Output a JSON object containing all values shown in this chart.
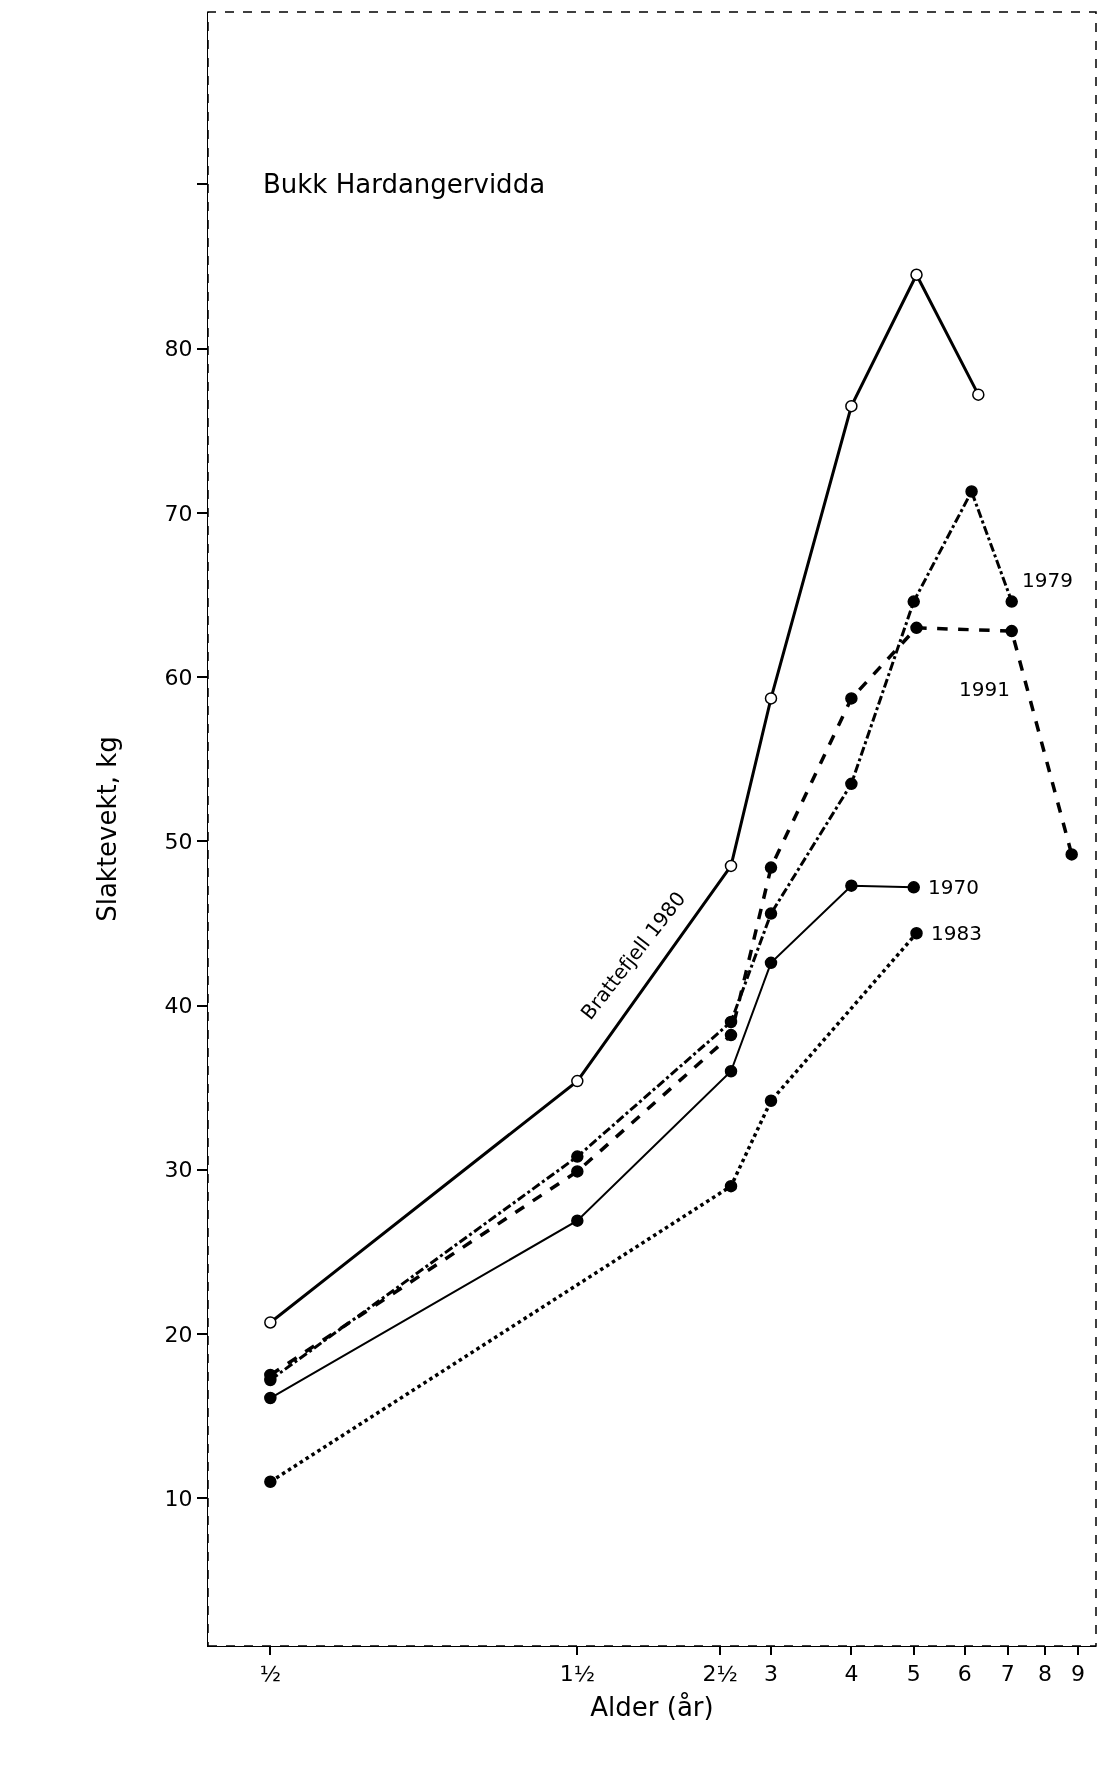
{
  "chart_data": {
    "type": "line",
    "xlabel": "Alder (år)",
    "ylabel": "Slaktevekt, kg",
    "log": "x",
    "legend": false,
    "xlim": [
      0.4,
      9.6
    ],
    "xticks": [
      {
        "value": 0.5,
        "label": "½"
      },
      {
        "value": 1.5,
        "label": "1½"
      },
      {
        "value": 2.5,
        "label": "2½"
      },
      3,
      4,
      5,
      6,
      7,
      8,
      9
    ],
    "ylim": [
      1,
      100.5
    ],
    "yticks": [
      10,
      20,
      30,
      40,
      50,
      60,
      70,
      80,
      {
        "value": 90,
        "label": null
      }
    ],
    "series": [
      {
        "name": "Brattefjell 1980",
        "color": "#000000",
        "line_style": "solid",
        "marker": "circle-open",
        "x": [
          0.5,
          1.5,
          2.6,
          3,
          4,
          5.05,
          6.3
        ],
        "values": [
          20.7,
          35.4,
          48.5,
          58.7,
          76.5,
          84.5,
          77.2
        ]
      },
      {
        "name": "1979",
        "color": "#000000",
        "line_style": "dashdot",
        "marker": "circle",
        "x": [
          0.5,
          1.5,
          2.6,
          3,
          4,
          5,
          6.15,
          7.1
        ],
        "values": [
          17.2,
          30.8,
          39.0,
          45.6,
          53.5,
          64.6,
          71.3,
          64.6
        ]
      },
      {
        "name": "1991",
        "color": "#000000",
        "line_style": "dashed",
        "marker": "circle",
        "x": [
          0.5,
          1.5,
          2.6,
          3,
          4,
          5.05,
          7.1,
          8.8
        ],
        "values": [
          17.5,
          29.9,
          38.2,
          48.4,
          58.7,
          63.0,
          62.8,
          49.2
        ]
      },
      {
        "name": "1970",
        "color": "#000000",
        "line_style": "solid",
        "marker": "circle",
        "x": [
          0.5,
          1.5,
          2.6,
          3,
          4,
          5
        ],
        "values": [
          16.1,
          26.9,
          36.0,
          42.6,
          47.3,
          47.2
        ]
      },
      {
        "name": "1983",
        "color": "#000000",
        "line_style": "dotted",
        "marker": "circle",
        "x": [
          0.5,
          2.6,
          3,
          5.05
        ],
        "values": [
          11.0,
          29.0,
          34.2,
          44.4
        ]
      }
    ],
    "annotations": [
      "Bukk Hardangervidda"
    ]
  }
}
